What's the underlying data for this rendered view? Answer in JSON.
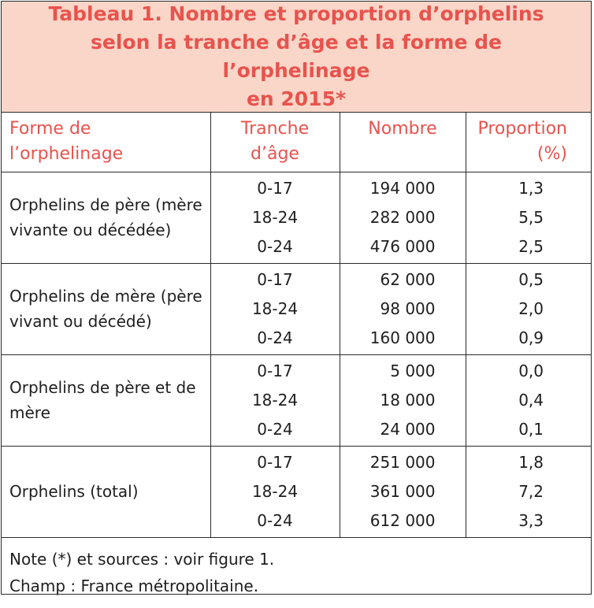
{
  "title": "Tableau 1. Nombre et proportion d’orphelins\nselon la tranche d’âge et la forme de l’orphelinage\nen 2015*",
  "headers": {
    "form": "Forme de\nl’orphelinage",
    "age": "Tranche\nd’âge",
    "count": "Nombre",
    "proportion": "Proportion\n(%)"
  },
  "groups": [
    {
      "label": "Orphelins de père (mère vivante ou décédée)",
      "rows": [
        {
          "age": "0-17",
          "count": "194 000",
          "proportion": "1,3"
        },
        {
          "age": "18-24",
          "count": "282 000",
          "proportion": "5,5"
        },
        {
          "age": "0-24",
          "count": "476 000",
          "proportion": "2,5"
        }
      ]
    },
    {
      "label": "Orphelins de mère (père vivant ou décédé)",
      "rows": [
        {
          "age": "0-17",
          "count": "62 000",
          "proportion": "0,5"
        },
        {
          "age": "18-24",
          "count": "98 000",
          "proportion": "2,0"
        },
        {
          "age": "0-24",
          "count": "160 000",
          "proportion": "0,9"
        }
      ]
    },
    {
      "label": "Orphelins de père et de mère",
      "rows": [
        {
          "age": "0-17",
          "count": "5 000",
          "proportion": "0,0"
        },
        {
          "age": "18-24",
          "count": "18 000",
          "proportion": "0,4"
        },
        {
          "age": "0-24",
          "count": "24 000",
          "proportion": "0,1"
        }
      ]
    },
    {
      "label": "Orphelins (total)",
      "rows": [
        {
          "age": "0-17",
          "count": "251 000",
          "proportion": "1,8"
        },
        {
          "age": "18-24",
          "count": "361 000",
          "proportion": "7,2"
        },
        {
          "age": "0-24",
          "count": "612 000",
          "proportion": "3,3"
        }
      ]
    }
  ],
  "notes": {
    "line1": "Note (*) et sources : voir figure 1.",
    "line2": "Champ : France métropolitaine."
  },
  "colors": {
    "title_text": "#e8534d",
    "title_background": "#f9d6c8",
    "header_text": "#e8534d",
    "border": "#2a2a2a"
  }
}
